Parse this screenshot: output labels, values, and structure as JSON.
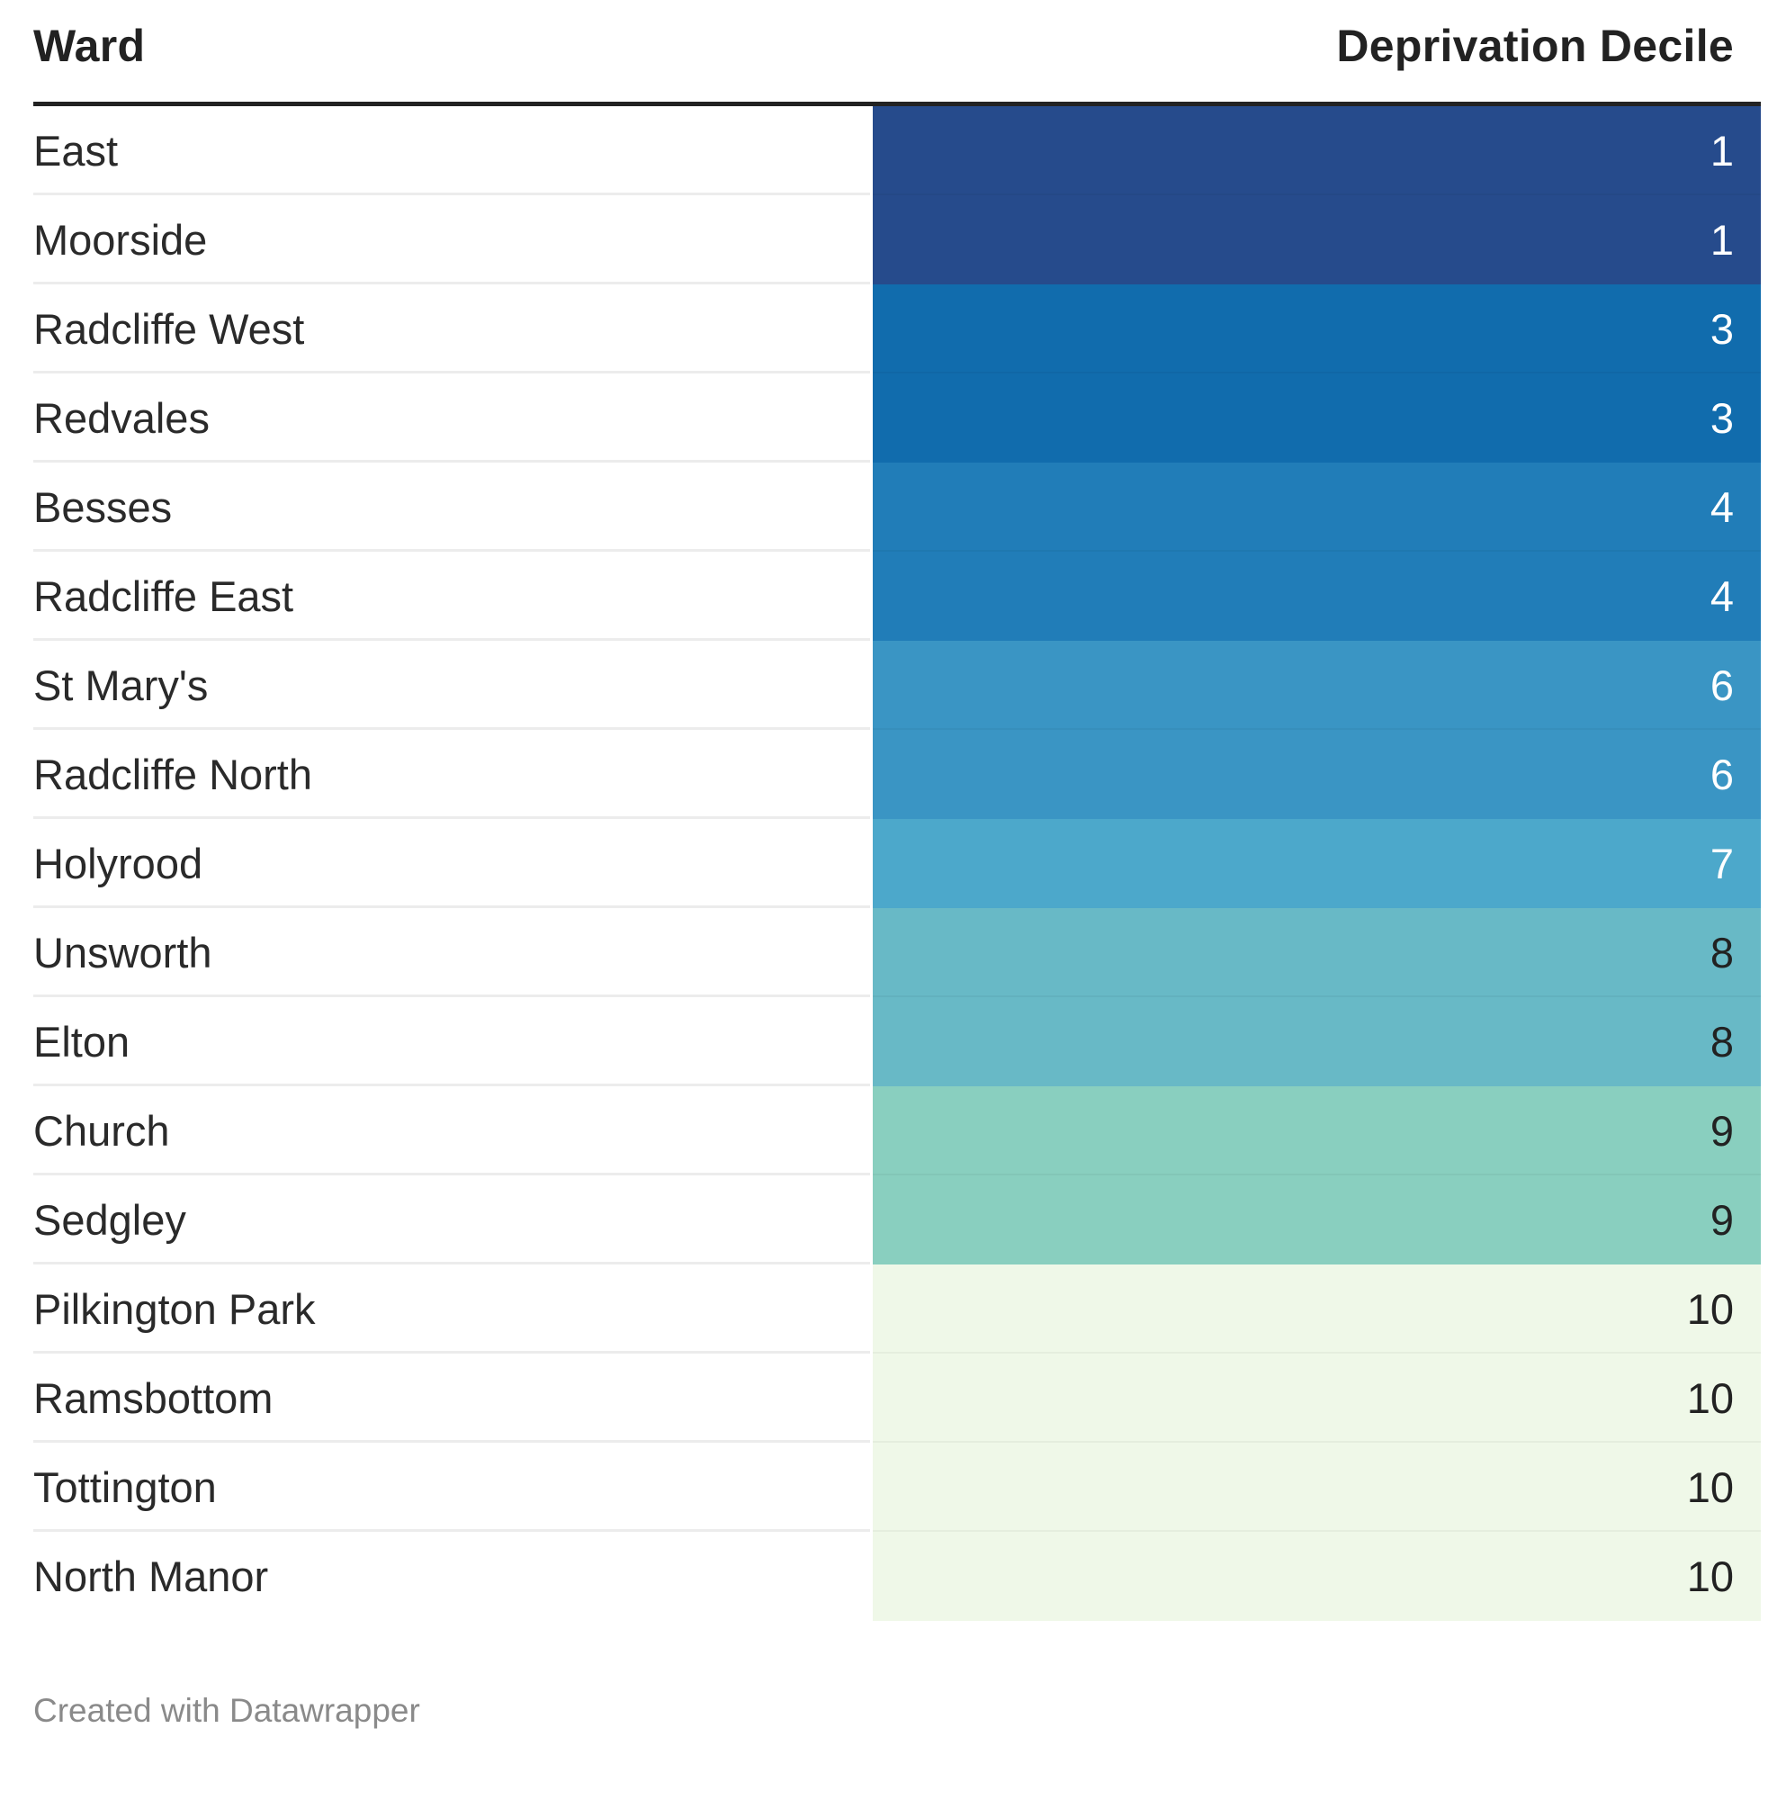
{
  "chart_data": {
    "type": "table",
    "columns": [
      "Ward",
      "Deprivation Decile"
    ],
    "rows": [
      {
        "ward": "East",
        "decile": 1
      },
      {
        "ward": "Moorside",
        "decile": 1
      },
      {
        "ward": "Radcliffe West",
        "decile": 3
      },
      {
        "ward": "Redvales",
        "decile": 3
      },
      {
        "ward": "Besses",
        "decile": 4
      },
      {
        "ward": "Radcliffe East",
        "decile": 4
      },
      {
        "ward": "St Mary's",
        "decile": 6
      },
      {
        "ward": "Radcliffe North",
        "decile": 6
      },
      {
        "ward": "Holyrood",
        "decile": 7
      },
      {
        "ward": "Unsworth",
        "decile": 8
      },
      {
        "ward": "Elton",
        "decile": 8
      },
      {
        "ward": "Church",
        "decile": 9
      },
      {
        "ward": "Sedgley",
        "decile": 9
      },
      {
        "ward": "Pilkington Park",
        "decile": 10
      },
      {
        "ward": "Ramsbottom",
        "decile": 10
      },
      {
        "ward": "Tottington",
        "decile": 10
      },
      {
        "ward": "North Manor",
        "decile": 10
      }
    ],
    "color_scale": {
      "1": "#264b8c",
      "3": "#116cad",
      "4": "#217db8",
      "6": "#3a95c4",
      "7": "#4ca8cb",
      "8": "#68b9c6",
      "9": "#89cfbf",
      "10": "#eff8e8"
    },
    "text_colors": {
      "light": "#ffffff",
      "dark": "#222222"
    }
  },
  "footer": {
    "credit": "Created with Datawrapper"
  }
}
